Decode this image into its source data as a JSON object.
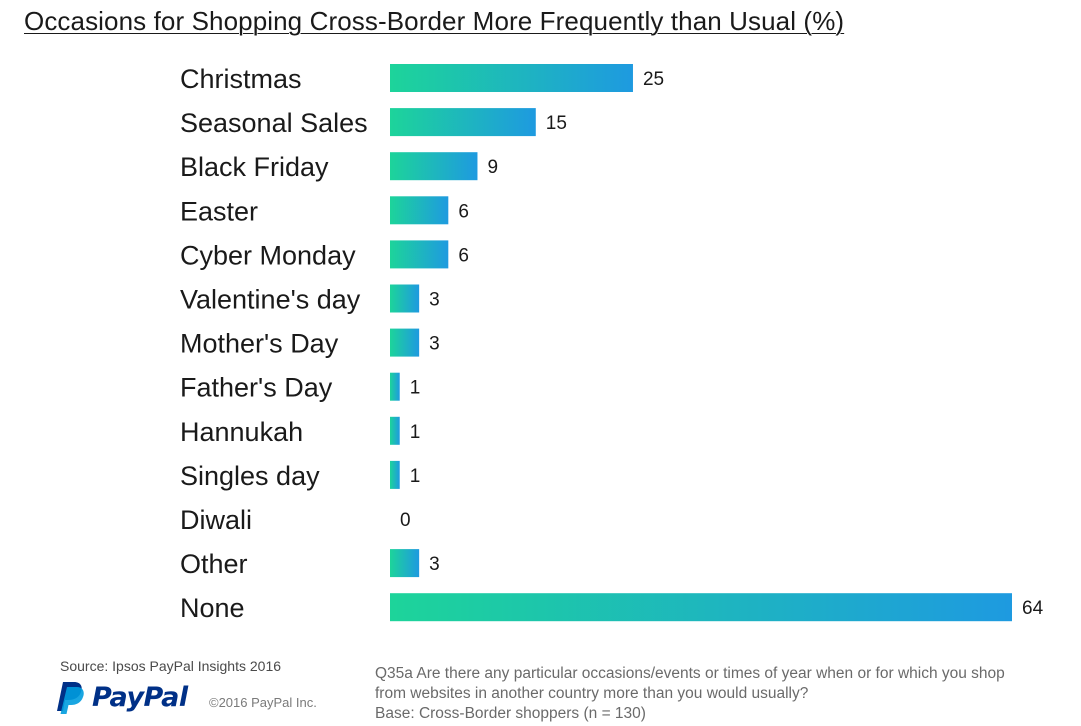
{
  "chart_data": {
    "type": "bar",
    "orientation": "horizontal",
    "title": "Occasions for Shopping Cross-Border More Frequently than Usual (%)",
    "categories": [
      "Christmas",
      "Seasonal Sales",
      "Black Friday",
      "Easter",
      "Cyber Monday",
      "Valentine's day",
      "Mother's Day",
      "Father's Day",
      "Hannukah",
      "Singles day",
      "Diwali",
      "Other",
      "None"
    ],
    "values": [
      25,
      15,
      9,
      6,
      6,
      3,
      3,
      1,
      1,
      1,
      0,
      3,
      64
    ],
    "xlabel": "",
    "ylabel": "",
    "xlim": [
      0,
      64
    ],
    "grid": false,
    "legend": "none",
    "data_labels": true,
    "bar_gradient": [
      "#1dd49a",
      "#1e9ae0"
    ]
  },
  "footer": {
    "source": "Source: Ipsos PayPal Insights 2016",
    "brand": "PayPal",
    "copyright": "©2016 PayPal Inc.",
    "question_lines": [
      "Q35a  Are there any particular occasions/events or times of year when or for which you shop",
      "from websites in another country more  than you would usually?",
      "Base: Cross-Border shoppers (n = 130)"
    ]
  },
  "colors": {
    "logo_dark": "#003087",
    "logo_light": "#009cde"
  }
}
